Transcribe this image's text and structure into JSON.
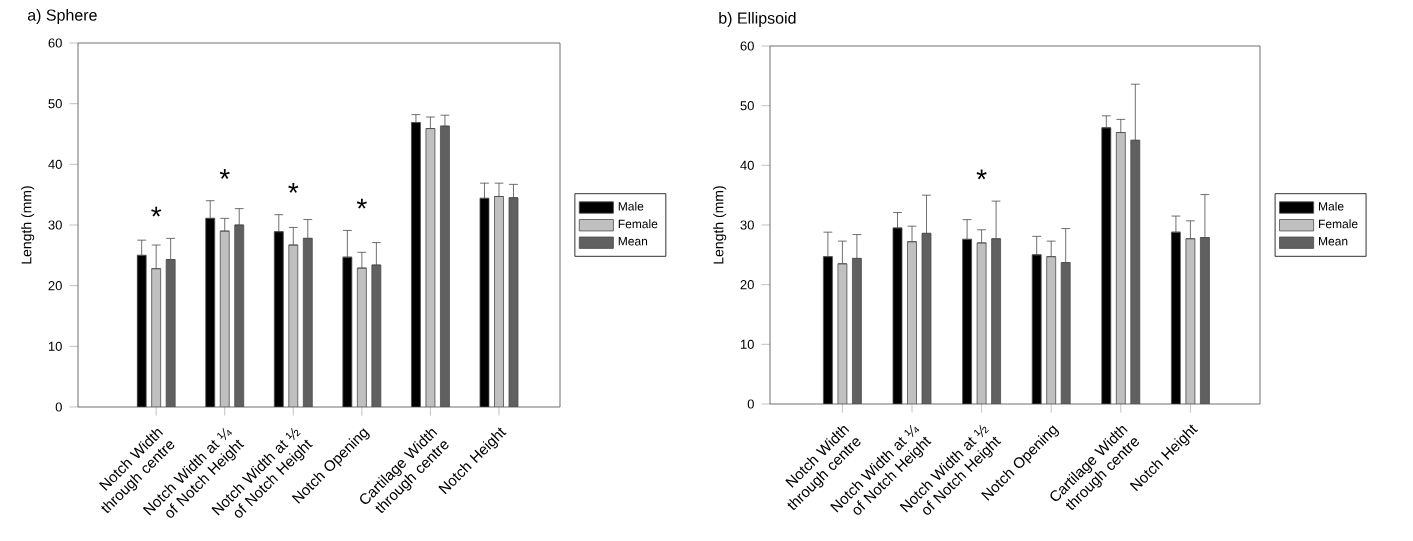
{
  "chart_data": [
    {
      "type": "bar",
      "title": "a) Sphere",
      "ylabel": "Length (mm)",
      "categories": [
        "Notch Width through centre",
        "Notch Width at ¼ of Notch Height",
        "Notch Width at ½ of Notch Height",
        "Notch Opening",
        "Cartilage Width through centre",
        "Notch Height"
      ],
      "series": [
        {
          "name": "Male",
          "color": "#000000",
          "values": [
            25.0,
            31.1,
            28.9,
            24.7,
            46.9,
            34.4
          ],
          "errors": [
            [
              25.0,
              27.5
            ],
            [
              31.1,
              34.0
            ],
            [
              28.9,
              31.7
            ],
            [
              24.7,
              29.1
            ],
            [
              46.9,
              48.2
            ],
            [
              34.4,
              36.9
            ]
          ]
        },
        {
          "name": "Female",
          "color": "#c0c0c0",
          "values": [
            22.8,
            29.0,
            26.7,
            22.9,
            45.9,
            34.7
          ],
          "errors": [
            [
              22.8,
              26.7
            ],
            [
              29.0,
              31.1
            ],
            [
              26.7,
              29.6
            ],
            [
              22.9,
              25.5
            ],
            [
              45.9,
              47.8
            ],
            [
              34.7,
              36.9
            ]
          ]
        },
        {
          "name": "Mean",
          "color": "#606060",
          "values": [
            24.3,
            30.0,
            27.8,
            23.4,
            46.3,
            34.5
          ],
          "errors": [
            [
              24.3,
              27.8
            ],
            [
              30.0,
              32.7
            ],
            [
              27.8,
              30.9
            ],
            [
              23.4,
              27.1
            ],
            [
              46.3,
              48.1
            ],
            [
              34.5,
              36.7
            ]
          ]
        }
      ],
      "ylim": [
        0,
        60
      ],
      "yticks": [
        0,
        10,
        20,
        30,
        40,
        50,
        60
      ],
      "legend": "right",
      "annotations": [
        "*",
        "*",
        "*",
        "*"
      ]
    },
    {
      "type": "bar",
      "title": "b) Ellipsoid",
      "ylabel": "Length (mm)",
      "categories": [
        "Notch Width through centre",
        "Notch Width at ¼ of Notch Height",
        "Notch Width at ½ of Notch Height",
        "Notch Opening",
        "Cartilage Width through centre",
        "Notch Height"
      ],
      "series": [
        {
          "name": "Male",
          "color": "#000000",
          "values": [
            24.7,
            29.5,
            27.6,
            25.0,
            46.3,
            28.8
          ],
          "errors": [
            [
              24.7,
              28.8
            ],
            [
              29.5,
              32.1
            ],
            [
              27.6,
              30.9
            ],
            [
              25.0,
              28.1
            ],
            [
              46.3,
              48.3
            ],
            [
              28.8,
              31.5
            ]
          ]
        },
        {
          "name": "Female",
          "color": "#c0c0c0",
          "values": [
            23.5,
            27.2,
            27.0,
            24.7,
            45.5,
            27.7
          ],
          "errors": [
            [
              23.5,
              27.3
            ],
            [
              27.2,
              29.8
            ],
            [
              27.0,
              29.2
            ],
            [
              24.7,
              27.3
            ],
            [
              45.5,
              47.7
            ],
            [
              27.7,
              30.7
            ]
          ]
        },
        {
          "name": "Mean",
          "color": "#606060",
          "values": [
            24.4,
            28.6,
            27.7,
            23.7,
            44.2,
            27.9
          ],
          "errors": [
            [
              24.4,
              28.4
            ],
            [
              28.6,
              35.0
            ],
            [
              27.7,
              34.0
            ],
            [
              23.7,
              29.4
            ],
            [
              44.2,
              53.6
            ],
            [
              27.9,
              35.1
            ]
          ]
        }
      ],
      "ylim": [
        0,
        60
      ],
      "yticks": [
        0,
        10,
        20,
        30,
        40,
        50,
        60
      ],
      "legend": "right",
      "annotations": [
        "*"
      ]
    }
  ]
}
